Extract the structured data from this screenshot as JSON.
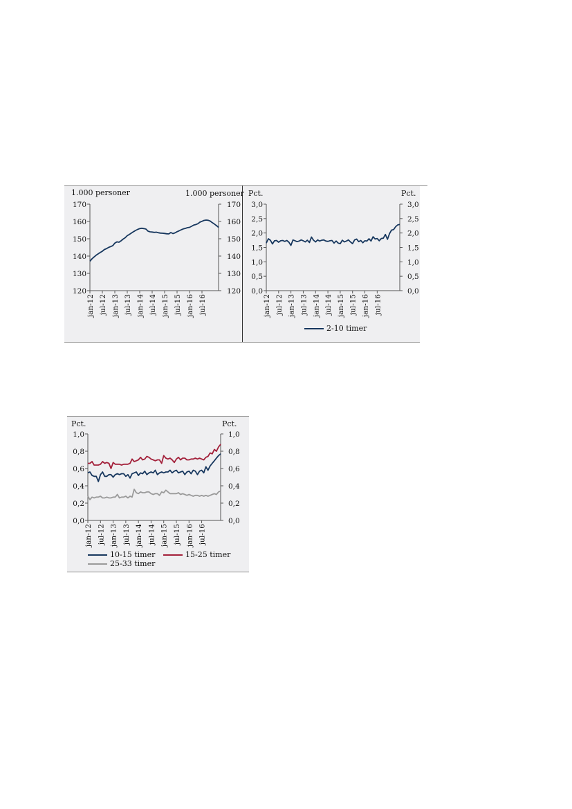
{
  "colors": {
    "navy": "#17375e",
    "red": "#a3203a",
    "gray": "#9a9a9a",
    "axis": "#555555",
    "panel": "#efeff1",
    "rule": "#8c8c8c"
  },
  "chart_data": [
    {
      "type": "line",
      "left_unit": "1.000 personer",
      "right_unit": "1.000 personer",
      "x_tick_labels": [
        "jan-12",
        "jul-12",
        "jan-13",
        "jul-13",
        "jan-14",
        "jul-14",
        "jan-15",
        "jul-15",
        "jan-16",
        "jul-16"
      ],
      "y_tick_labels": [
        "120",
        "130",
        "140",
        "150",
        "160",
        "170"
      ],
      "ylim": [
        120,
        170
      ],
      "y_step": 10,
      "series": [
        {
          "color_key": "navy",
          "values": [
            137.0,
            138.4,
            139.5,
            140.5,
            141.3,
            142.1,
            142.8,
            143.8,
            144.3,
            145.0,
            145.5,
            146.0,
            147.5,
            148.2,
            148.0,
            148.8,
            149.8,
            150.6,
            151.8,
            152.5,
            153.3,
            154.1,
            154.8,
            155.4,
            155.9,
            156.1,
            155.9,
            155.6,
            154.4,
            154.0,
            153.9,
            153.7,
            153.8,
            153.5,
            153.3,
            153.2,
            153.1,
            152.9,
            152.8,
            153.6,
            153.0,
            153.4,
            154.1,
            154.6,
            155.2,
            155.7,
            156.0,
            156.4,
            156.6,
            157.2,
            157.9,
            158.2,
            158.7,
            159.6,
            160.1,
            160.6,
            160.8,
            160.7,
            160.2,
            159.3,
            158.5,
            157.6,
            156.6
          ]
        }
      ]
    },
    {
      "type": "line",
      "left_unit": "Pct.",
      "right_unit": "Pct.",
      "x_tick_labels": [
        "jan-12",
        "jul-12",
        "jan-13",
        "jul-13",
        "jan-14",
        "jul-14",
        "jan-15",
        "jul-15",
        "jan-16",
        "jul-16"
      ],
      "y_tick_labels": [
        "0,0",
        "0,5",
        "1,0",
        "1,5",
        "2,0",
        "2,5",
        "3,0"
      ],
      "ylim": [
        0,
        3
      ],
      "y_step": 0.5,
      "series": [
        {
          "name": "2-10 timer",
          "color_key": "navy",
          "values": [
            1.65,
            1.8,
            1.75,
            1.62,
            1.73,
            1.74,
            1.68,
            1.73,
            1.74,
            1.71,
            1.74,
            1.68,
            1.57,
            1.76,
            1.73,
            1.7,
            1.72,
            1.76,
            1.73,
            1.69,
            1.75,
            1.67,
            1.86,
            1.75,
            1.69,
            1.76,
            1.72,
            1.75,
            1.76,
            1.72,
            1.71,
            1.73,
            1.74,
            1.65,
            1.72,
            1.65,
            1.63,
            1.75,
            1.69,
            1.72,
            1.76,
            1.69,
            1.63,
            1.76,
            1.79,
            1.7,
            1.74,
            1.66,
            1.73,
            1.72,
            1.8,
            1.72,
            1.87,
            1.79,
            1.81,
            1.73,
            1.81,
            1.82,
            1.95,
            1.78,
            1.98,
            2.1,
            2.12,
            2.22,
            2.28,
            2.3
          ]
        }
      ]
    },
    {
      "type": "line",
      "left_unit": "Pct.",
      "right_unit": "Pct.",
      "x_tick_labels": [
        "jan-12",
        "jul-12",
        "jan-13",
        "jul-13",
        "jan-14",
        "jul-14",
        "jan-15",
        "jul-15",
        "jan-16",
        "jul-16"
      ],
      "y_tick_labels": [
        "0,0",
        "0,2",
        "0,4",
        "0,6",
        "0,8",
        "1,0"
      ],
      "ylim": [
        0,
        1
      ],
      "y_step": 0.2,
      "series": [
        {
          "name": "10-15 timer",
          "color_key": "navy",
          "values": [
            0.55,
            0.56,
            0.52,
            0.51,
            0.51,
            0.45,
            0.53,
            0.56,
            0.51,
            0.51,
            0.53,
            0.53,
            0.5,
            0.53,
            0.54,
            0.53,
            0.54,
            0.54,
            0.51,
            0.53,
            0.49,
            0.54,
            0.55,
            0.56,
            0.52,
            0.55,
            0.54,
            0.57,
            0.53,
            0.55,
            0.56,
            0.55,
            0.58,
            0.53,
            0.55,
            0.56,
            0.55,
            0.56,
            0.56,
            0.58,
            0.55,
            0.57,
            0.58,
            0.55,
            0.56,
            0.57,
            0.53,
            0.56,
            0.57,
            0.54,
            0.58,
            0.57,
            0.53,
            0.57,
            0.58,
            0.55,
            0.62,
            0.58,
            0.63,
            0.66,
            0.69,
            0.72,
            0.75,
            0.77
          ]
        },
        {
          "name": "15-25 timer",
          "color_key": "red",
          "values": [
            0.66,
            0.66,
            0.68,
            0.64,
            0.64,
            0.64,
            0.65,
            0.68,
            0.66,
            0.67,
            0.66,
            0.6,
            0.67,
            0.65,
            0.65,
            0.65,
            0.64,
            0.65,
            0.65,
            0.65,
            0.66,
            0.71,
            0.68,
            0.69,
            0.7,
            0.73,
            0.7,
            0.71,
            0.74,
            0.73,
            0.71,
            0.7,
            0.69,
            0.7,
            0.7,
            0.66,
            0.75,
            0.72,
            0.71,
            0.72,
            0.7,
            0.67,
            0.71,
            0.73,
            0.7,
            0.72,
            0.72,
            0.7,
            0.7,
            0.71,
            0.71,
            0.72,
            0.71,
            0.72,
            0.71,
            0.7,
            0.73,
            0.74,
            0.78,
            0.77,
            0.82,
            0.8,
            0.85,
            0.88
          ]
        },
        {
          "name": "25-33 timer",
          "color_key": "gray",
          "values": [
            0.28,
            0.24,
            0.27,
            0.26,
            0.27,
            0.27,
            0.28,
            0.26,
            0.26,
            0.27,
            0.26,
            0.26,
            0.27,
            0.27,
            0.3,
            0.26,
            0.27,
            0.27,
            0.28,
            0.26,
            0.28,
            0.27,
            0.36,
            0.32,
            0.31,
            0.33,
            0.32,
            0.32,
            0.33,
            0.33,
            0.31,
            0.3,
            0.31,
            0.31,
            0.29,
            0.33,
            0.32,
            0.35,
            0.33,
            0.31,
            0.31,
            0.31,
            0.31,
            0.32,
            0.3,
            0.31,
            0.3,
            0.29,
            0.3,
            0.29,
            0.28,
            0.29,
            0.29,
            0.28,
            0.29,
            0.28,
            0.29,
            0.28,
            0.29,
            0.3,
            0.31,
            0.3,
            0.33,
            0.34
          ]
        }
      ]
    }
  ]
}
